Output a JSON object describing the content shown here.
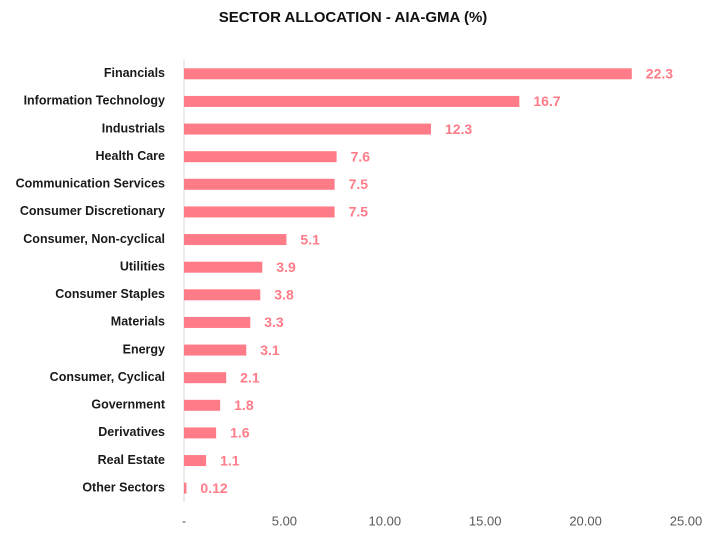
{
  "chart_data": {
    "type": "hbar",
    "title": "SECTOR ALLOCATION - AIA-GMA (%)",
    "categories": [
      "Financials",
      "Information Technology",
      "Industrials",
      "Health Care",
      "Communication Services",
      "Consumer Discretionary",
      "Consumer, Non-cyclical",
      "Utilities",
      "Consumer Staples",
      "Materials",
      "Energy",
      "Consumer, Cyclical",
      "Government",
      "Derivatives",
      "Real Estate",
      "Other Sectors"
    ],
    "values": [
      22.3,
      16.7,
      12.3,
      7.6,
      7.5,
      7.5,
      5.1,
      3.9,
      3.8,
      3.3,
      3.1,
      2.1,
      1.8,
      1.6,
      1.1,
      0.12
    ],
    "color": "#ff7b87",
    "xlim": [
      0,
      25
    ],
    "xticks": [
      {
        "value": 0,
        "label": "-"
      },
      {
        "value": 5,
        "label": "5.00"
      },
      {
        "value": 10,
        "label": "10.00"
      },
      {
        "value": 15,
        "label": "15.00"
      },
      {
        "value": 20,
        "label": "20.00"
      },
      {
        "value": 25,
        "label": "25.00"
      }
    ],
    "grid": false
  }
}
